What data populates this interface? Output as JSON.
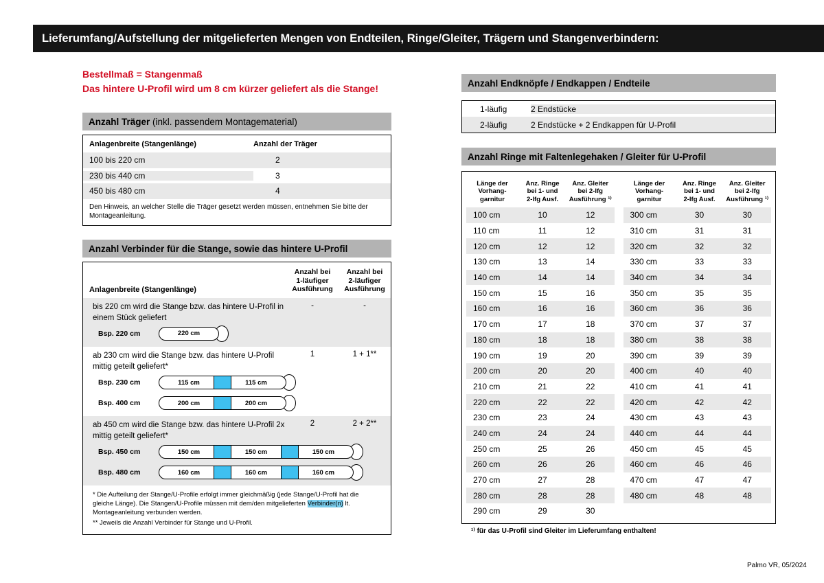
{
  "colors": {
    "bar": "#161616",
    "red": "#d31126",
    "gray_header": "#b3b3b3",
    "stripe": "#e8e8e8",
    "cyan": "#3fc0f0",
    "highlight": "#79ccec"
  },
  "header": {
    "title": "Lieferumfang/Aufstellung der mitgelieferten Mengen von Endteilen, Ringe/Gleiter, Trägern und Stangenverbindern:"
  },
  "notice": {
    "line1": "Bestellmaß = Stangenmaß",
    "line2": "Das hintere U-Profil wird um 8 cm kürzer geliefert als die Stange!"
  },
  "traeger": {
    "title_bold": "Anzahl Träger",
    "title_normal": " (inkl. passendem Montagematerial)",
    "col_width": "Anlagenbreite (Stangenlänge)",
    "col_count": "Anzahl der Träger",
    "rows": [
      {
        "range": "100 bis 220 cm",
        "count": "2"
      },
      {
        "range": "230 bis 440 cm",
        "count": "3"
      },
      {
        "range": "450 bis 480 cm",
        "count": "4"
      }
    ],
    "note": "Den Hinweis, an welcher Stelle die Träger gesetzt werden müssen, entnehmen Sie bitte der Montageanleitung."
  },
  "verbinder": {
    "title": "Anzahl Verbinder für die Stange, sowie das hintere U-Profil",
    "col_width": "Anlagenbreite (Stangenlänge)",
    "col1_lines": [
      "Anzahl bei",
      "1-läufiger",
      "Ausführung"
    ],
    "col2_lines": [
      "Anzahl bei",
      "2-läufiger",
      "Ausführung"
    ],
    "sections": [
      {
        "text": "bis 220 cm wird die Stange bzw. das hintere U-Profil in einem Stück geliefert",
        "val1": "-",
        "val2": "-"
      },
      {
        "text": "ab 230 cm wird die Stange bzw. das hintere U-Profil mittig geteilt geliefert*",
        "val1": "1",
        "val2": "1 + 1**"
      },
      {
        "text": "ab 450 cm wird die Stange bzw. das hintere U-Profil 2x mittig geteilt geliefert*",
        "val1": "2",
        "val2": "2 + 2**"
      }
    ],
    "rods": [
      {
        "label": "Bsp. 220 cm",
        "segments": [
          "220 cm"
        ]
      },
      {
        "label": "Bsp. 230 cm",
        "segments": [
          "115 cm",
          "115 cm"
        ]
      },
      {
        "label": "Bsp. 400 cm",
        "segments": [
          "200 cm",
          "200 cm"
        ]
      },
      {
        "label": "Bsp. 450 cm",
        "segments": [
          "150 cm",
          "150 cm",
          "150 cm"
        ]
      },
      {
        "label": "Bsp. 480 cm",
        "segments": [
          "160 cm",
          "160 cm",
          "160 cm"
        ]
      }
    ],
    "footnote1_pre": "* Die Aufteilung der Stange/U-Profile erfolgt immer gleichmäßig (jede Stange/U-Profil hat die gleiche Länge). Die Stangen/U-Profile müssen mit dem/den mitgelieferten ",
    "footnote1_highlight": "Verbinder(n)",
    "footnote1_post": " lt. Montageanleitung verbunden werden.",
    "footnote2": "** Jeweils die Anzahl Verbinder für Stange und U-Profil."
  },
  "endteile": {
    "title": "Anzahl Endknöpfe / Endkappen / Endteile",
    "rows": [
      {
        "type": "1-läufig",
        "desc": "2 Endstücke"
      },
      {
        "type": "2-läufig",
        "desc": "2 Endstücke + 2 Endkappen für U-Profil"
      }
    ]
  },
  "ringe": {
    "title": "Anzahl Ringe mit Faltenlegehaken / Gleiter für U-Profil",
    "col_headers": [
      [
        "Länge der",
        "Vorhang-",
        "garnitur"
      ],
      [
        "Anz. Ringe",
        "bei 1- und",
        "2-lfg Ausf."
      ],
      [
        "Anz. Gleiter",
        "bei 2-lfg",
        "Ausführung ¹⁾"
      ]
    ],
    "table_left": [
      {
        "len": "100 cm",
        "ringe": "10",
        "gleiter": "12"
      },
      {
        "len": "110 cm",
        "ringe": "11",
        "gleiter": "12"
      },
      {
        "len": "120 cm",
        "ringe": "12",
        "gleiter": "12"
      },
      {
        "len": "130 cm",
        "ringe": "13",
        "gleiter": "14"
      },
      {
        "len": "140 cm",
        "ringe": "14",
        "gleiter": "14"
      },
      {
        "len": "150 cm",
        "ringe": "15",
        "gleiter": "16"
      },
      {
        "len": "160 cm",
        "ringe": "16",
        "gleiter": "16"
      },
      {
        "len": "170 cm",
        "ringe": "17",
        "gleiter": "18"
      },
      {
        "len": "180 cm",
        "ringe": "18",
        "gleiter": "18"
      },
      {
        "len": "190 cm",
        "ringe": "19",
        "gleiter": "20"
      },
      {
        "len": "200 cm",
        "ringe": "20",
        "gleiter": "20"
      },
      {
        "len": "210 cm",
        "ringe": "21",
        "gleiter": "22"
      },
      {
        "len": "220 cm",
        "ringe": "22",
        "gleiter": "22"
      },
      {
        "len": "230 cm",
        "ringe": "23",
        "gleiter": "24"
      },
      {
        "len": "240 cm",
        "ringe": "24",
        "gleiter": "24"
      },
      {
        "len": "250 cm",
        "ringe": "25",
        "gleiter": "26"
      },
      {
        "len": "260 cm",
        "ringe": "26",
        "gleiter": "26"
      },
      {
        "len": "270 cm",
        "ringe": "27",
        "gleiter": "28"
      },
      {
        "len": "280 cm",
        "ringe": "28",
        "gleiter": "28"
      },
      {
        "len": "290 cm",
        "ringe": "29",
        "gleiter": "30"
      }
    ],
    "table_right": [
      {
        "len": "300 cm",
        "ringe": "30",
        "gleiter": "30"
      },
      {
        "len": "310 cm",
        "ringe": "31",
        "gleiter": "31"
      },
      {
        "len": "320 cm",
        "ringe": "32",
        "gleiter": "32"
      },
      {
        "len": "330 cm",
        "ringe": "33",
        "gleiter": "33"
      },
      {
        "len": "340 cm",
        "ringe": "34",
        "gleiter": "34"
      },
      {
        "len": "350 cm",
        "ringe": "35",
        "gleiter": "35"
      },
      {
        "len": "360 cm",
        "ringe": "36",
        "gleiter": "36"
      },
      {
        "len": "370 cm",
        "ringe": "37",
        "gleiter": "37"
      },
      {
        "len": "380 cm",
        "ringe": "38",
        "gleiter": "38"
      },
      {
        "len": "390 cm",
        "ringe": "39",
        "gleiter": "39"
      },
      {
        "len": "400 cm",
        "ringe": "40",
        "gleiter": "40"
      },
      {
        "len": "410 cm",
        "ringe": "41",
        "gleiter": "41"
      },
      {
        "len": "420 cm",
        "ringe": "42",
        "gleiter": "42"
      },
      {
        "len": "430 cm",
        "ringe": "43",
        "gleiter": "43"
      },
      {
        "len": "440 cm",
        "ringe": "44",
        "gleiter": "44"
      },
      {
        "len": "450 cm",
        "ringe": "45",
        "gleiter": "45"
      },
      {
        "len": "460 cm",
        "ringe": "46",
        "gleiter": "46"
      },
      {
        "len": "470 cm",
        "ringe": "47",
        "gleiter": "47"
      },
      {
        "len": "480 cm",
        "ringe": "48",
        "gleiter": "48"
      }
    ],
    "footnote": "¹⁾ für das U-Profil sind Gleiter im Lieferumfang enthalten!"
  },
  "footer": {
    "text": "Palmo VR, 05/2024"
  }
}
